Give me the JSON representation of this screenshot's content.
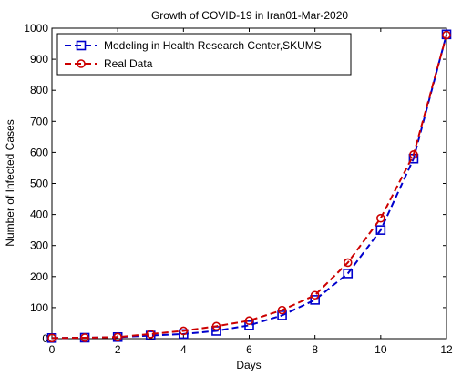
{
  "chart_data": {
    "type": "line",
    "title": "Growth of COVID-19 in Iran01-Mar-2020",
    "xlabel": "Days",
    "ylabel": "Number of Infected Cases",
    "xlim": [
      0,
      12
    ],
    "ylim": [
      0,
      1000
    ],
    "xticks": [
      0,
      2,
      4,
      6,
      8,
      10,
      12
    ],
    "yticks": [
      0,
      100,
      200,
      300,
      400,
      500,
      600,
      700,
      800,
      900,
      1000
    ],
    "grid": false,
    "legend_position": "top-left",
    "x": [
      0,
      1,
      2,
      3,
      4,
      5,
      6,
      7,
      8,
      9,
      10,
      11,
      12
    ],
    "series": [
      {
        "name": "Modeling in Health Research Center,SKUMS",
        "color": "#0000cc",
        "marker": "square",
        "line_style": "dashed",
        "values": [
          2,
          3,
          5,
          10,
          15,
          25,
          43,
          75,
          125,
          210,
          350,
          580,
          980
        ]
      },
      {
        "name": "Real Data",
        "color": "#cc0000",
        "marker": "circle",
        "line_style": "dashed",
        "values": [
          2,
          3,
          5,
          15,
          25,
          40,
          58,
          92,
          140,
          245,
          388,
          593,
          978
        ]
      }
    ]
  }
}
